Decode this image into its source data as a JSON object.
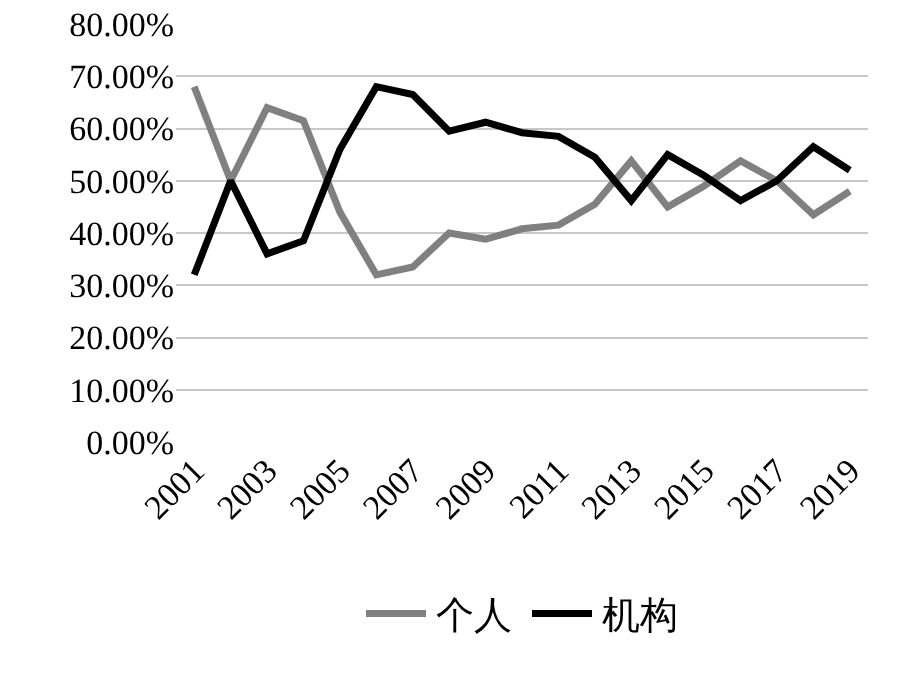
{
  "chart_data": {
    "type": "line",
    "categories": [
      "2001",
      null,
      "2003",
      null,
      "2005",
      null,
      "2007",
      null,
      "2009",
      null,
      "2011",
      null,
      "2013",
      null,
      "2015",
      null,
      "2017",
      null,
      "2019"
    ],
    "series": [
      {
        "name": "个人",
        "color": "#808080",
        "values": [
          68,
          50,
          64,
          61.5,
          44,
          32,
          33.5,
          40,
          38.8,
          40.8,
          41.5,
          45.5,
          53.8,
          45,
          49,
          53.8,
          50,
          43.5,
          48
        ]
      },
      {
        "name": "机构",
        "color": "#000000",
        "values": [
          32,
          50,
          36,
          38.5,
          56,
          68,
          66.5,
          59.5,
          61.2,
          59.2,
          58.5,
          54.5,
          46.2,
          55,
          51,
          46.2,
          50,
          56.5,
          52
        ]
      }
    ],
    "ylim": [
      0,
      80
    ],
    "yticks": [
      {
        "value": 0,
        "label": "0.00%"
      },
      {
        "value": 10,
        "label": "10.00%"
      },
      {
        "value": 20,
        "label": "20.00%"
      },
      {
        "value": 30,
        "label": "30.00%"
      },
      {
        "value": 40,
        "label": "40.00%"
      },
      {
        "value": 50,
        "label": "50.00%"
      },
      {
        "value": 60,
        "label": "60.00%"
      },
      {
        "value": 70,
        "label": "70.00%"
      },
      {
        "value": 80,
        "label": "80.00%"
      }
    ],
    "grid": "y",
    "legend": "bottom",
    "marker": "none",
    "line_style": "solid"
  }
}
